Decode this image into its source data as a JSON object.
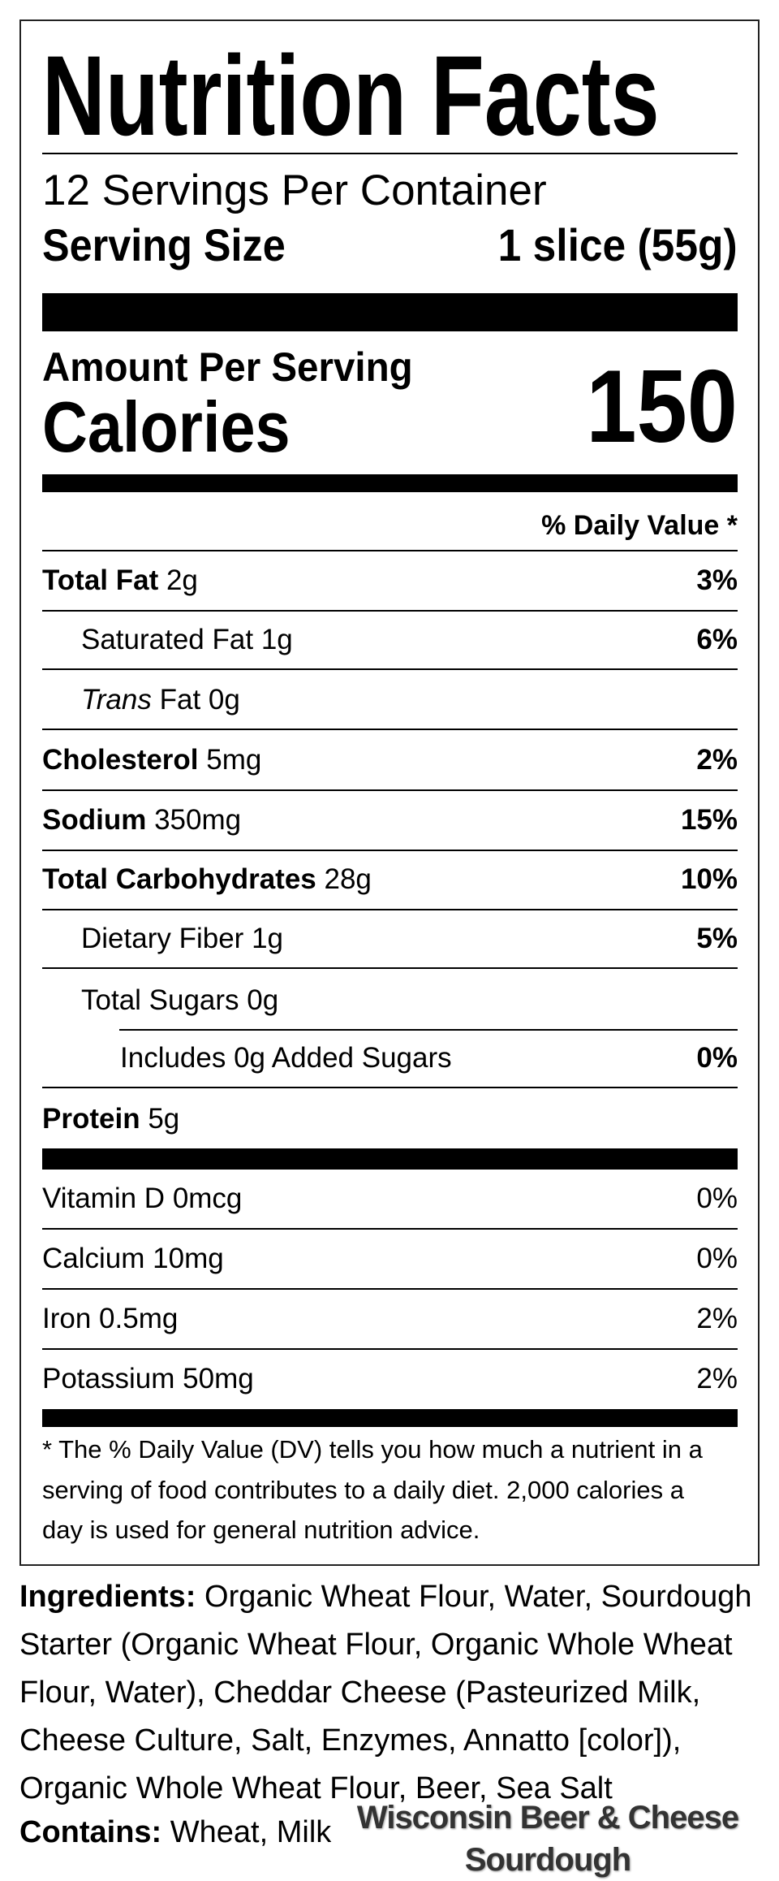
{
  "label": {
    "title": "Nutrition Facts",
    "servings_per_container": "12 Servings Per Container",
    "serving_size_label": "Serving Size",
    "serving_size_value": "1 slice (55g)",
    "amount_per_serving": "Amount Per Serving",
    "calories_label": "Calories",
    "calories_value": "150",
    "daily_value_header": "% Daily Value *",
    "nutrients": [
      {
        "name": "Total Fat",
        "amount": "2g",
        "dv": "3%"
      },
      {
        "name": "Saturated Fat",
        "amount": "1g",
        "dv": "6%"
      },
      {
        "name": "Trans",
        "name_suffix": "Fat",
        "amount": "0g",
        "dv": ""
      },
      {
        "name": "Cholesterol",
        "amount": "5mg",
        "dv": "2%"
      },
      {
        "name": "Sodium",
        "amount": "350mg",
        "dv": "15%"
      },
      {
        "name": "Total Carbohydrates",
        "amount": "28g",
        "dv": "10%"
      },
      {
        "name": "Dietary Fiber",
        "amount": "1g",
        "dv": "5%"
      },
      {
        "name": "Total Sugars",
        "amount": "0g",
        "dv": ""
      },
      {
        "name": "Includes 0g Added Sugars",
        "amount": "",
        "dv": "0%"
      },
      {
        "name": "Protein",
        "amount": "5g",
        "dv": ""
      }
    ],
    "vitamins": [
      {
        "name": "Vitamin D",
        "amount": "0mcg",
        "dv": "0%"
      },
      {
        "name": "Calcium",
        "amount": "10mg",
        "dv": "0%"
      },
      {
        "name": "Iron",
        "amount": "0.5mg",
        "dv": "2%"
      },
      {
        "name": "Potassium",
        "amount": "50mg",
        "dv": "2%"
      }
    ],
    "footnote_lines": [
      "* The % Daily Value (DV) tells you how much a nutrient in a",
      "serving of food contributes to a daily diet. 2,000 calories a",
      "day is used for general nutrition advice."
    ]
  },
  "ingredients": {
    "label": "Ingredients:",
    "lines": [
      "Organic Wheat Flour, Water, Sourdough",
      "Starter (Organic Wheat Flour, Organic Whole Wheat",
      "Flour, Water), Cheddar Cheese (Pasteurized Milk,",
      "Cheese Culture, Salt, Enzymes, Annatto [color]),",
      "Organic Whole Wheat Flour, Beer, Sea Salt"
    ]
  },
  "contains": {
    "label": "Contains:",
    "value": "Wheat, Milk"
  },
  "product_name": {
    "line1": "Wisconsin Beer & Cheese",
    "line2": "Sourdough"
  }
}
